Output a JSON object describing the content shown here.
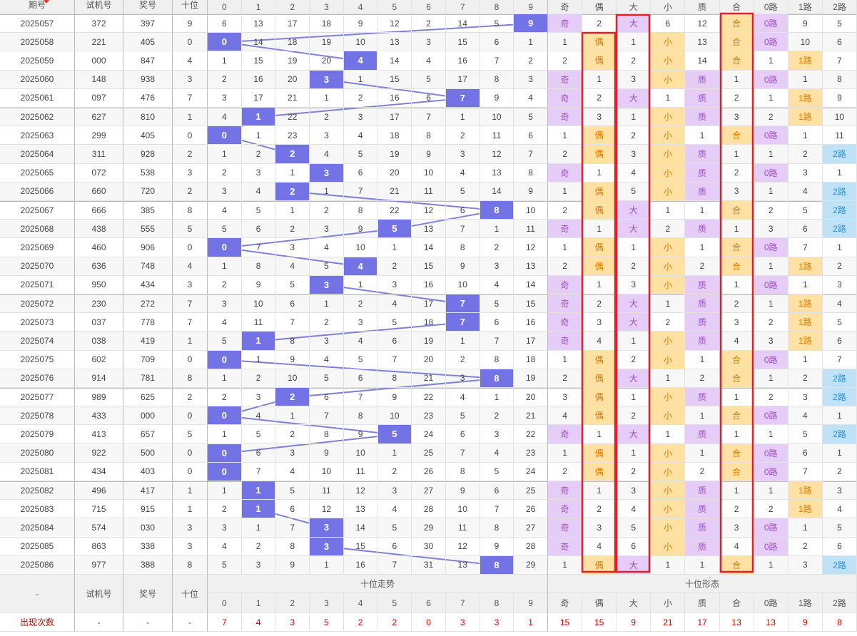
{
  "header": {
    "columns": [
      "期号",
      "试机号",
      "奖号",
      "十位"
    ],
    "trend_digits": [
      0,
      1,
      2,
      3,
      4,
      5,
      6,
      7,
      8,
      9
    ],
    "form_headers": [
      "奇",
      "偶",
      "大",
      "小",
      "质",
      "合",
      "0路",
      "1路",
      "2路"
    ]
  },
  "rows": [
    {
      "period": "2025057",
      "trial": "372",
      "prize": "397",
      "tens": 9,
      "trend": [
        6,
        13,
        17,
        18,
        9,
        12,
        2,
        14,
        5,
        9
      ],
      "form": [
        "奇",
        2,
        "大",
        6,
        12,
        "合",
        "0路",
        9,
        5
      ]
    },
    {
      "period": "2025058",
      "trial": "221",
      "prize": "405",
      "tens": 0,
      "trend": [
        0,
        14,
        18,
        19,
        10,
        13,
        3,
        15,
        6,
        1
      ],
      "form": [
        1,
        "偶",
        1,
        "小",
        13,
        "合",
        "0路",
        10,
        6
      ]
    },
    {
      "period": "2025059",
      "trial": "000",
      "prize": "847",
      "tens": 4,
      "trend": [
        1,
        15,
        19,
        20,
        4,
        14,
        4,
        16,
        7,
        2
      ],
      "form": [
        2,
        "偶",
        2,
        "小",
        14,
        "合",
        1,
        "1路",
        7
      ]
    },
    {
      "period": "2025060",
      "trial": "148",
      "prize": "938",
      "tens": 3,
      "trend": [
        2,
        16,
        20,
        3,
        1,
        15,
        5,
        17,
        8,
        3
      ],
      "form": [
        "奇",
        1,
        3,
        "小",
        "质",
        1,
        "0路",
        1,
        8
      ]
    },
    {
      "period": "2025061",
      "trial": "097",
      "prize": "476",
      "tens": 7,
      "trend": [
        3,
        17,
        21,
        1,
        2,
        16,
        6,
        7,
        9,
        4
      ],
      "form": [
        "奇",
        2,
        "大",
        1,
        "质",
        2,
        1,
        "1路",
        9
      ]
    },
    {
      "period": "2025062",
      "trial": "627",
      "prize": "810",
      "tens": 1,
      "trend": [
        4,
        1,
        22,
        2,
        3,
        17,
        7,
        1,
        10,
        5
      ],
      "form": [
        "奇",
        3,
        1,
        "小",
        "质",
        3,
        2,
        "1路",
        10
      ]
    },
    {
      "period": "2025063",
      "trial": "299",
      "prize": "405",
      "tens": 0,
      "trend": [
        0,
        1,
        23,
        3,
        4,
        18,
        8,
        2,
        11,
        6
      ],
      "form": [
        1,
        "偶",
        2,
        "小",
        1,
        "合",
        "0路",
        1,
        11
      ]
    },
    {
      "period": "2025064",
      "trial": "311",
      "prize": "928",
      "tens": 2,
      "trend": [
        1,
        2,
        2,
        4,
        5,
        19,
        9,
        3,
        12,
        7
      ],
      "form": [
        2,
        "偶",
        3,
        "小",
        "质",
        1,
        1,
        2,
        "2路"
      ]
    },
    {
      "period": "2025065",
      "trial": "072",
      "prize": "538",
      "tens": 3,
      "trend": [
        2,
        3,
        1,
        3,
        6,
        20,
        10,
        4,
        13,
        8
      ],
      "form": [
        "奇",
        1,
        4,
        "小",
        "质",
        2,
        "0路",
        3,
        1
      ]
    },
    {
      "period": "2025066",
      "trial": "660",
      "prize": "720",
      "tens": 2,
      "trend": [
        3,
        4,
        2,
        1,
        7,
        21,
        11,
        5,
        14,
        9
      ],
      "form": [
        1,
        "偶",
        5,
        "小",
        "质",
        3,
        1,
        4,
        "2路"
      ]
    },
    {
      "period": "2025067",
      "trial": "666",
      "prize": "385",
      "tens": 8,
      "trend": [
        4,
        5,
        1,
        2,
        8,
        22,
        12,
        6,
        8,
        10
      ],
      "form": [
        2,
        "偶",
        "大",
        1,
        1,
        "合",
        2,
        5,
        "2路"
      ]
    },
    {
      "period": "2025068",
      "trial": "438",
      "prize": "555",
      "tens": 5,
      "trend": [
        5,
        6,
        2,
        3,
        9,
        5,
        13,
        7,
        1,
        11
      ],
      "form": [
        "奇",
        1,
        "大",
        2,
        "质",
        1,
        3,
        6,
        "2路"
      ]
    },
    {
      "period": "2025069",
      "trial": "460",
      "prize": "906",
      "tens": 0,
      "trend": [
        0,
        7,
        3,
        4,
        10,
        1,
        14,
        8,
        2,
        12
      ],
      "form": [
        1,
        "偶",
        1,
        "小",
        1,
        "合",
        "0路",
        7,
        1
      ]
    },
    {
      "period": "2025070",
      "trial": "636",
      "prize": "748",
      "tens": 4,
      "trend": [
        1,
        8,
        4,
        5,
        4,
        2,
        15,
        9,
        3,
        13
      ],
      "form": [
        2,
        "偶",
        2,
        "小",
        2,
        "合",
        1,
        "1路",
        2
      ]
    },
    {
      "period": "2025071",
      "trial": "950",
      "prize": "434",
      "tens": 3,
      "trend": [
        2,
        9,
        5,
        3,
        1,
        3,
        16,
        10,
        4,
        14
      ],
      "form": [
        "奇",
        1,
        3,
        "小",
        "质",
        1,
        "0路",
        1,
        3
      ]
    },
    {
      "period": "2025072",
      "trial": "230",
      "prize": "272",
      "tens": 7,
      "trend": [
        3,
        10,
        6,
        1,
        2,
        4,
        17,
        7,
        5,
        15
      ],
      "form": [
        "奇",
        2,
        "大",
        1,
        "质",
        2,
        1,
        "1路",
        4
      ]
    },
    {
      "period": "2025073",
      "trial": "037",
      "prize": "778",
      "tens": 7,
      "trend": [
        4,
        11,
        7,
        2,
        3,
        5,
        18,
        7,
        6,
        16
      ],
      "form": [
        "奇",
        3,
        "大",
        2,
        "质",
        3,
        2,
        "1路",
        5
      ]
    },
    {
      "period": "2025074",
      "trial": "038",
      "prize": "419",
      "tens": 1,
      "trend": [
        5,
        1,
        8,
        3,
        4,
        6,
        19,
        1,
        7,
        17
      ],
      "form": [
        "奇",
        4,
        1,
        "小",
        "质",
        4,
        3,
        "1路",
        6
      ]
    },
    {
      "period": "2025075",
      "trial": "602",
      "prize": "709",
      "tens": 0,
      "trend": [
        0,
        1,
        9,
        4,
        5,
        7,
        20,
        2,
        8,
        18
      ],
      "form": [
        1,
        "偶",
        2,
        "小",
        1,
        "合",
        "0路",
        1,
        7
      ]
    },
    {
      "period": "2025076",
      "trial": "914",
      "prize": "781",
      "tens": 8,
      "trend": [
        1,
        2,
        10,
        5,
        6,
        8,
        21,
        3,
        8,
        19
      ],
      "form": [
        2,
        "偶",
        "大",
        1,
        2,
        "合",
        1,
        2,
        "2路"
      ]
    },
    {
      "period": "2025077",
      "trial": "989",
      "prize": "625",
      "tens": 2,
      "trend": [
        2,
        3,
        2,
        6,
        7,
        9,
        22,
        4,
        1,
        20
      ],
      "form": [
        3,
        "偶",
        1,
        "小",
        "质",
        1,
        2,
        3,
        "2路"
      ]
    },
    {
      "period": "2025078",
      "trial": "433",
      "prize": "000",
      "tens": 0,
      "trend": [
        0,
        4,
        1,
        7,
        8,
        10,
        23,
        5,
        2,
        21
      ],
      "form": [
        4,
        "偶",
        2,
        "小",
        1,
        "合",
        "0路",
        4,
        1
      ]
    },
    {
      "period": "2025079",
      "trial": "413",
      "prize": "657",
      "tens": 5,
      "trend": [
        1,
        5,
        2,
        8,
        9,
        5,
        24,
        6,
        3,
        22
      ],
      "form": [
        "奇",
        1,
        "大",
        1,
        "质",
        1,
        1,
        5,
        "2路"
      ]
    },
    {
      "period": "2025080",
      "trial": "922",
      "prize": "500",
      "tens": 0,
      "trend": [
        0,
        6,
        3,
        9,
        10,
        1,
        25,
        7,
        4,
        23
      ],
      "form": [
        1,
        "偶",
        1,
        "小",
        1,
        "合",
        "0路",
        6,
        1
      ]
    },
    {
      "period": "2025081",
      "trial": "434",
      "prize": "403",
      "tens": 0,
      "trend": [
        0,
        7,
        4,
        10,
        11,
        2,
        26,
        8,
        5,
        24
      ],
      "form": [
        2,
        "偶",
        2,
        "小",
        2,
        "合",
        "0路",
        7,
        2
      ]
    },
    {
      "period": "2025082",
      "trial": "496",
      "prize": "417",
      "tens": 1,
      "trend": [
        1,
        1,
        5,
        11,
        12,
        3,
        27,
        9,
        6,
        25
      ],
      "form": [
        "奇",
        1,
        3,
        "小",
        "质",
        1,
        1,
        "1路",
        3
      ]
    },
    {
      "period": "2025083",
      "trial": "715",
      "prize": "915",
      "tens": 1,
      "trend": [
        2,
        1,
        6,
        12,
        13,
        4,
        28,
        10,
        7,
        26
      ],
      "form": [
        "奇",
        2,
        4,
        "小",
        "质",
        2,
        2,
        "1路",
        4
      ]
    },
    {
      "period": "2025084",
      "trial": "574",
      "prize": "030",
      "tens": 3,
      "trend": [
        3,
        1,
        7,
        3,
        14,
        5,
        29,
        11,
        8,
        27
      ],
      "form": [
        "奇",
        3,
        5,
        "小",
        "质",
        3,
        "0路",
        1,
        5
      ]
    },
    {
      "period": "2025085",
      "trial": "863",
      "prize": "338",
      "tens": 3,
      "trend": [
        4,
        2,
        8,
        3,
        15,
        6,
        30,
        12,
        9,
        28
      ],
      "form": [
        "奇",
        4,
        6,
        "小",
        "质",
        4,
        "0路",
        2,
        6
      ]
    },
    {
      "period": "2025086",
      "trial": "977",
      "prize": "388",
      "tens": 8,
      "trend": [
        5,
        3,
        9,
        1,
        16,
        7,
        31,
        13,
        8,
        29
      ],
      "form": [
        1,
        "偶",
        "大",
        1,
        1,
        "合",
        1,
        3,
        "2路"
      ]
    }
  ],
  "footer": {
    "first": "-",
    "columns": [
      "试机号",
      "奖号",
      "十位"
    ],
    "trend_title": "十位走势",
    "form_title": "十位形态",
    "count_label": "出现次数",
    "count_dashes": [
      "-",
      "-",
      "-"
    ],
    "trend_counts": [
      7,
      4,
      3,
      5,
      2,
      2,
      0,
      3,
      3,
      1
    ],
    "form_counts": [
      15,
      15,
      9,
      21,
      17,
      13,
      13,
      9,
      8
    ]
  }
}
